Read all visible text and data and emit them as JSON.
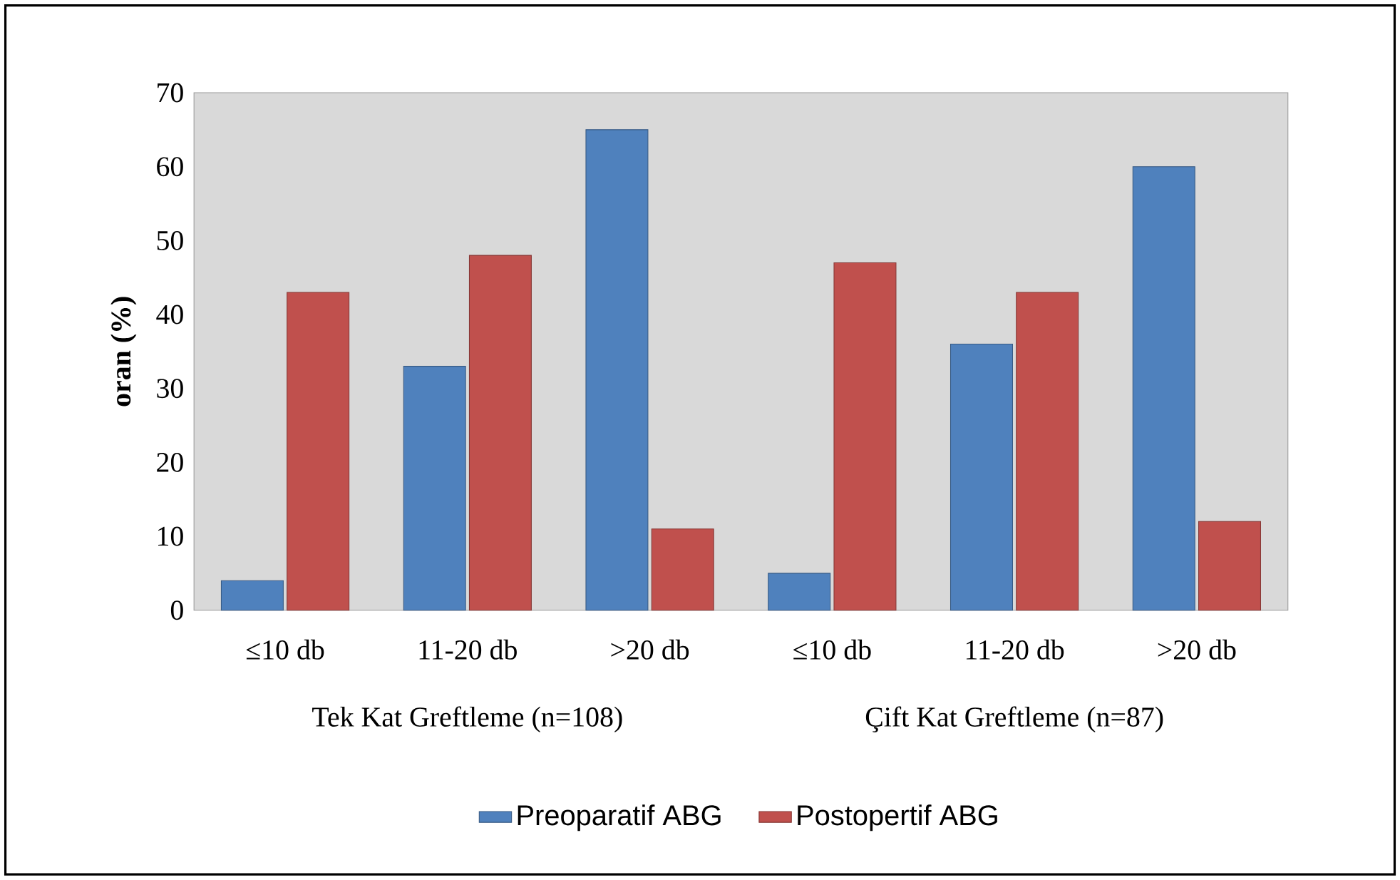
{
  "chart_data": {
    "type": "bar",
    "ylabel": "oran (%)",
    "categories": [
      "≤10 db",
      "11-20 db",
      ">20 db",
      "≤10 db",
      "11-20 db",
      ">20 db"
    ],
    "series": [
      {
        "name": "Preoparatif ABG",
        "color": "#4f81bd",
        "values": [
          4,
          33,
          65,
          5,
          36,
          60
        ]
      },
      {
        "name": "Postopertif ABG",
        "color": "#c0504d",
        "values": [
          43,
          48,
          11,
          47,
          43,
          12
        ]
      }
    ],
    "ylim": [
      0,
      70
    ],
    "yticks": [
      0,
      10,
      20,
      30,
      40,
      50,
      60,
      70
    ],
    "grid": false,
    "legend": "bottom",
    "annotations": [
      "Tek Kat Greftleme (n=108)",
      "Çift Kat Greftleme (n=87)"
    ]
  }
}
